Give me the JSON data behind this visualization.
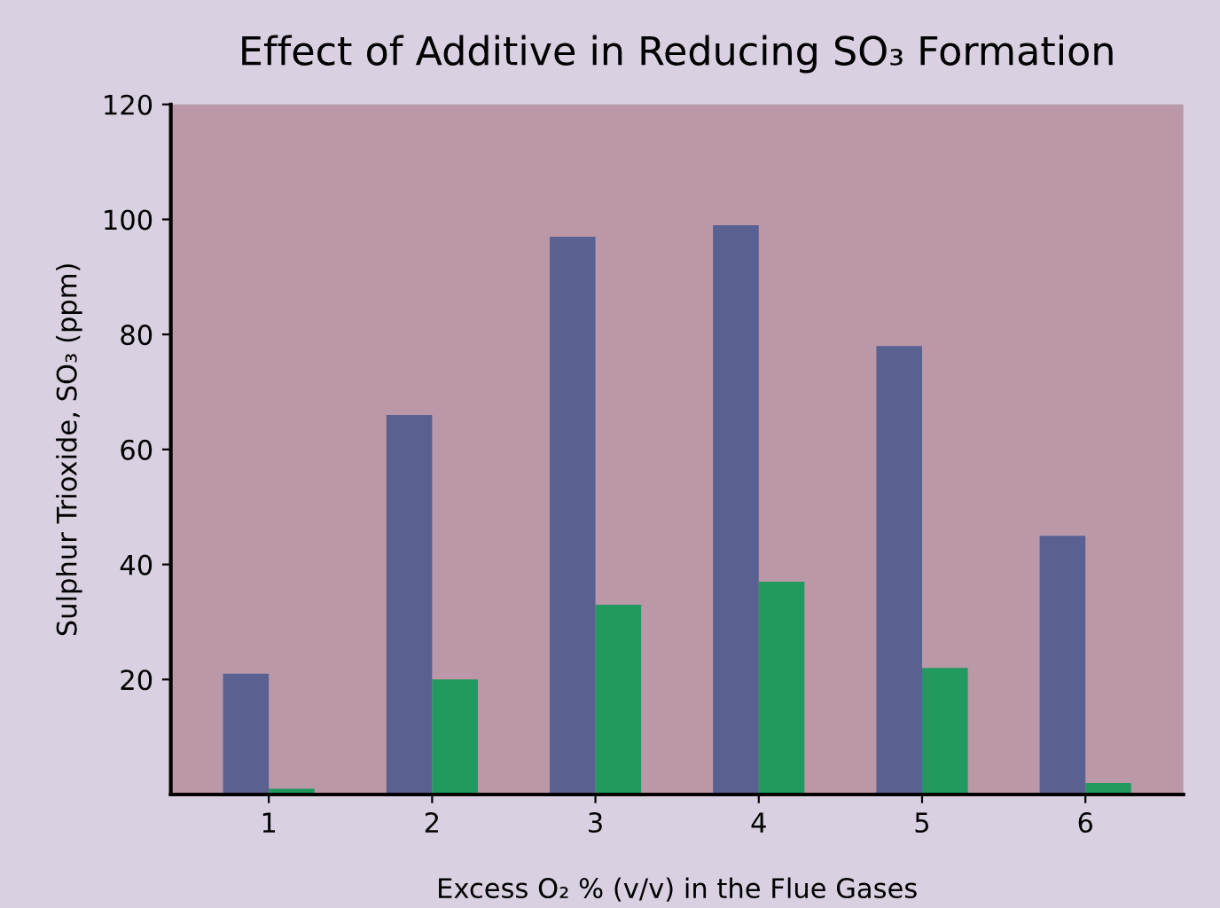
{
  "chart_data": {
    "type": "bar",
    "title": "Effect of Additive in Reducing SO₃ Formation",
    "xlabel": "Excess O₂ % (v/v) in the Flue Gases",
    "ylabel": "Sulphur Trioxide, SO₃ (ppm)",
    "categories": [
      "1",
      "2",
      "3",
      "4",
      "5",
      "6"
    ],
    "series": [
      {
        "color": "#5a6090",
        "values": [
          21,
          66,
          97,
          99,
          78,
          45
        ]
      },
      {
        "color": "#21995f",
        "values": [
          1,
          20,
          33,
          37,
          22,
          2
        ]
      }
    ],
    "ylim": [
      0,
      120
    ],
    "yticks": [
      20,
      40,
      60,
      80,
      100,
      120
    ],
    "grid": false,
    "legend": false
  }
}
